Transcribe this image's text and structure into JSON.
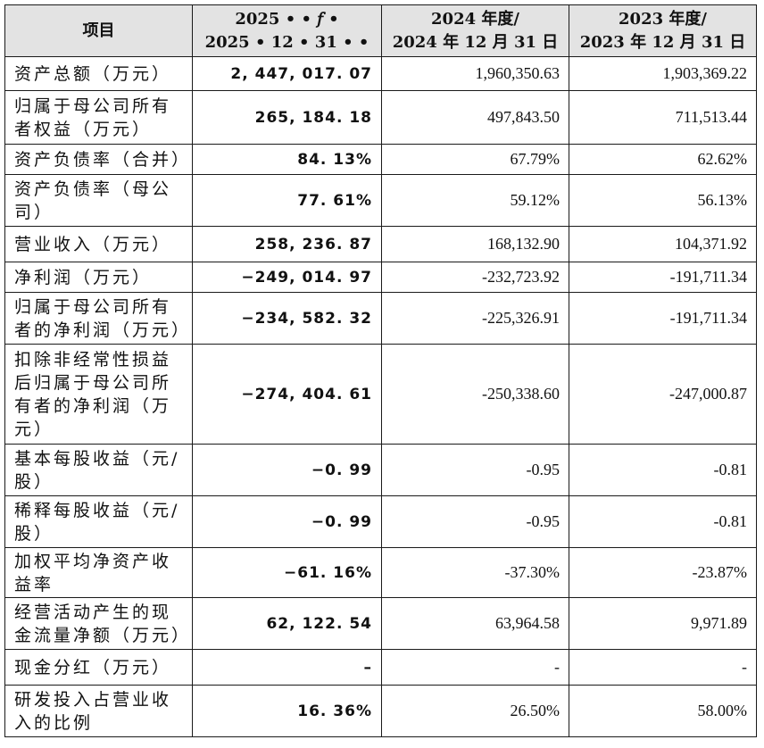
{
  "header": {
    "item": "项目",
    "period_2025_line1": "2025 • • 𝑓 •",
    "period_2025_line2": "2025 • 12 • 31 • •",
    "period_2024_line1": "2024 年度/",
    "period_2024_line2": "2024 年 12 月 31 日",
    "period_2023_line1": "2023 年度/",
    "period_2023_line2": "2023 年 12 月 31 日"
  },
  "rows": [
    {
      "label": "资产总额（万元）",
      "v2025": "2, 447, 017. 07",
      "v2024": "1,960,350.63",
      "v2023": "1,903,369.22"
    },
    {
      "label": "归属于母公司所有者权益（万元）",
      "v2025": "265, 184. 18",
      "v2024": "497,843.50",
      "v2023": "711,513.44"
    },
    {
      "label": "资产负债率（合并）",
      "v2025": "84. 13%",
      "v2024": "67.79%",
      "v2023": "62.62%"
    },
    {
      "label": "资产负债率（母公司）",
      "v2025": "77. 61%",
      "v2024": "59.12%",
      "v2023": "56.13%"
    },
    {
      "label": "营业收入（万元）",
      "v2025": "258, 236. 87",
      "v2024": "168,132.90",
      "v2023": "104,371.92"
    },
    {
      "label": "净利润（万元）",
      "v2025": "−249, 014. 97",
      "v2024": "-232,723.92",
      "v2023": "-191,711.34"
    },
    {
      "label": "归属于母公司所有者的净利润（万元）",
      "v2025": "−234, 582. 32",
      "v2024": "-225,326.91",
      "v2023": "-191,711.34"
    },
    {
      "label": "扣除非经常性损益后归属于母公司所有者的净利润（万元）",
      "v2025": "−274, 404. 61",
      "v2024": "-250,338.60",
      "v2023": "-247,000.87"
    },
    {
      "label": "基本每股收益（元/股）",
      "v2025": "−0. 99",
      "v2024": "-0.95",
      "v2023": "-0.81"
    },
    {
      "label": "稀释每股收益（元/股）",
      "v2025": "−0. 99",
      "v2024": "-0.95",
      "v2023": "-0.81"
    },
    {
      "label": "加权平均净资产收益率",
      "v2025": "−61. 16%",
      "v2024": "-37.30%",
      "v2023": "-23.87%"
    },
    {
      "label": "经营活动产生的现金流量净额（万元）",
      "v2025": "62, 122. 54",
      "v2024": "63,964.58",
      "v2023": "9,971.89"
    },
    {
      "label": "现金分红（万元）",
      "v2025": "–",
      "v2024": "-",
      "v2023": "-"
    },
    {
      "label": "研发投入占营业收入的比例",
      "v2025": "16. 36%",
      "v2024": "26.50%",
      "v2023": "58.00%"
    }
  ]
}
